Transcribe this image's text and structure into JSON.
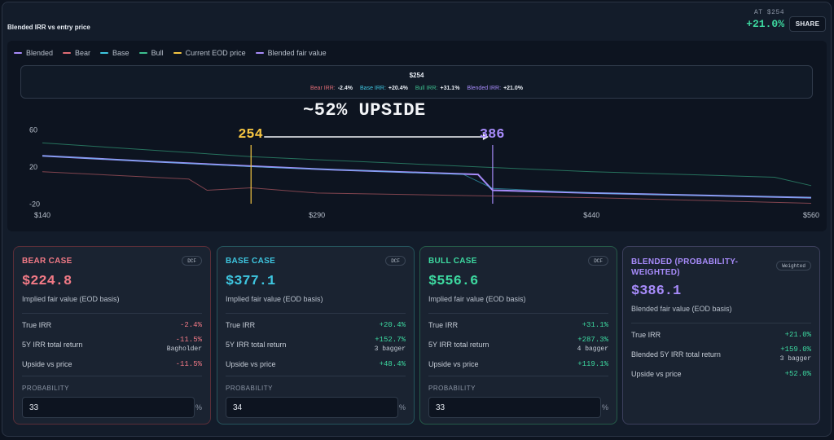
{
  "header": {
    "title": "Blended IRR vs entry price",
    "at_label": "AT $254",
    "irr_headline": "+21.0%",
    "share_label": "SHARE"
  },
  "colors": {
    "blended": "#a78bfa",
    "bear": "#e06c75",
    "base": "#3ec6e0",
    "bull": "#3dbf8f",
    "eod": "#f5c542",
    "fair": "#a78bfa"
  },
  "legend": [
    {
      "label": "Blended",
      "key": "blended"
    },
    {
      "label": "Bear",
      "key": "bear"
    },
    {
      "label": "Base",
      "key": "base"
    },
    {
      "label": "Bull",
      "key": "bull"
    },
    {
      "label": "Current EOD price",
      "key": "eod"
    },
    {
      "label": "Blended fair value",
      "key": "fair"
    }
  ],
  "tooltip": {
    "price": "$254",
    "items": [
      {
        "label": "Bear IRR:",
        "value": "-2.4%",
        "color": "#e06c75"
      },
      {
        "label": "Base IRR:",
        "value": "+20.4%",
        "color": "#3ec6e0"
      },
      {
        "label": "Bull IRR:",
        "value": "+31.1%",
        "color": "#3dbf8f"
      },
      {
        "label": "Blended IRR:",
        "value": "+21.0%",
        "color": "#a78bfa"
      }
    ]
  },
  "annotations": {
    "upside": "~52% UPSIDE",
    "current_price_label": "254",
    "fair_value_label": "386"
  },
  "chart_data": {
    "type": "line",
    "xlim": [
      140,
      560
    ],
    "ylim": [
      -30,
      70
    ],
    "x_ticks": [
      140,
      290,
      440,
      560
    ],
    "x_tick_labels": [
      "$140",
      "$290",
      "$440",
      "$560"
    ],
    "y_ticks": [
      60,
      20,
      -20
    ],
    "y_tick_labels": [
      "60",
      "20",
      "-20"
    ],
    "markers": {
      "current_price": 254,
      "fair_value": 386
    },
    "series": [
      {
        "name": "Bull",
        "key": "bull",
        "points": [
          [
            140,
            46
          ],
          [
            254,
            31.1
          ],
          [
            380,
            20
          ],
          [
            440,
            15
          ],
          [
            540,
            9
          ],
          [
            560,
            0
          ]
        ]
      },
      {
        "name": "Blended",
        "key": "blended",
        "points": [
          [
            140,
            32
          ],
          [
            200,
            26
          ],
          [
            254,
            21.0
          ],
          [
            300,
            17
          ],
          [
            378,
            12
          ],
          [
            386,
            -5
          ],
          [
            440,
            -8
          ],
          [
            560,
            -13
          ]
        ]
      },
      {
        "name": "Base",
        "key": "base",
        "points": [
          [
            140,
            32
          ],
          [
            254,
            20.4
          ],
          [
            370,
            12
          ],
          [
            386,
            -3
          ],
          [
            440,
            -8
          ],
          [
            560,
            -13
          ]
        ]
      },
      {
        "name": "Bear",
        "key": "bear",
        "points": [
          [
            140,
            15
          ],
          [
            220,
            7
          ],
          [
            230,
            -5
          ],
          [
            254,
            -2.4
          ],
          [
            290,
            -8
          ],
          [
            440,
            -13
          ],
          [
            560,
            -19
          ]
        ]
      }
    ],
    "grid": false,
    "legend_position": "top-left"
  },
  "cards": [
    {
      "title": "BEAR CASE",
      "badge": "DCF",
      "value": "$224.8",
      "subtitle": "Implied fair value (EOD basis)",
      "rows": [
        {
          "label": "True IRR",
          "value": "-2.4%",
          "tone": "neg",
          "note": ""
        },
        {
          "label": "5Y IRR total return",
          "value": "-11.5%",
          "tone": "neg",
          "note": "Bagholder"
        },
        {
          "label": "Upside vs price",
          "value": "-11.5%",
          "tone": "neg",
          "note": ""
        }
      ],
      "probability_label": "PROBABILITY",
      "probability": "33",
      "pct": "%"
    },
    {
      "title": "BASE CASE",
      "badge": "DCF",
      "value": "$377.1",
      "subtitle": "Implied fair value (EOD basis)",
      "rows": [
        {
          "label": "True IRR",
          "value": "+20.4%",
          "tone": "pos",
          "note": ""
        },
        {
          "label": "5Y IRR total return",
          "value": "+152.7%",
          "tone": "pos",
          "note": "3 bagger"
        },
        {
          "label": "Upside vs price",
          "value": "+48.4%",
          "tone": "pos",
          "note": ""
        }
      ],
      "probability_label": "PROBABILITY",
      "probability": "34",
      "pct": "%"
    },
    {
      "title": "BULL CASE",
      "badge": "DCF",
      "value": "$556.6",
      "subtitle": "Implied fair value (EOD basis)",
      "rows": [
        {
          "label": "True IRR",
          "value": "+31.1%",
          "tone": "pos",
          "note": ""
        },
        {
          "label": "5Y IRR total return",
          "value": "+287.3%",
          "tone": "pos",
          "note": "4 bagger"
        },
        {
          "label": "Upside vs price",
          "value": "+119.1%",
          "tone": "pos",
          "note": ""
        }
      ],
      "probability_label": "PROBABILITY",
      "probability": "33",
      "pct": "%"
    },
    {
      "title": "BLENDED (PROBABILITY-WEIGHTED)",
      "badge": "Weighted",
      "value": "$386.1",
      "subtitle": "Blended fair value (EOD basis)",
      "rows": [
        {
          "label": "True IRR",
          "value": "+21.0%",
          "tone": "pos",
          "note": ""
        },
        {
          "label": "Blended 5Y IRR total return",
          "value": "+159.0%",
          "tone": "pos",
          "note": "3 bagger"
        },
        {
          "label": "Upside vs price",
          "value": "+52.0%",
          "tone": "pos",
          "note": ""
        }
      ]
    }
  ]
}
